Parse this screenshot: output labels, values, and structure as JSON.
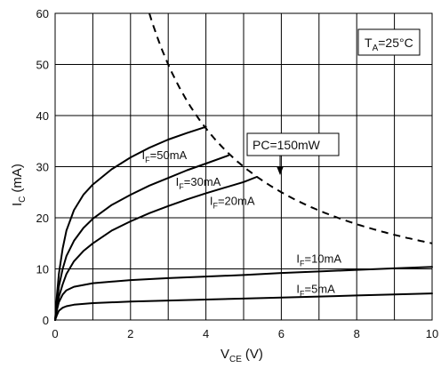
{
  "chart_data": {
    "type": "line",
    "xlabel": "V",
    "xlabel_sub": "CE",
    "xlabel_unit": "(V)",
    "ylabel": "I",
    "ylabel_sub": "C",
    "ylabel_unit": "(mA)",
    "xlim": [
      0,
      10
    ],
    "ylim": [
      0,
      60
    ],
    "xticks": [
      0,
      2,
      4,
      6,
      8,
      10
    ],
    "yticks": [
      0,
      10,
      20,
      30,
      40,
      50,
      60
    ],
    "xtick_labels": [
      "0",
      "2",
      "4",
      "6",
      "8",
      "10"
    ],
    "ytick_labels": [
      "0",
      "10",
      "20",
      "30",
      "40",
      "50",
      "60"
    ],
    "grid": true,
    "series": [
      {
        "name": "IF=50mA",
        "label_main": "I",
        "label_sub": "F",
        "label_rest": "=50mA",
        "x": [
          0,
          0.05,
          0.1,
          0.2,
          0.3,
          0.5,
          0.75,
          1.0,
          1.5,
          2.0,
          2.5,
          3.0,
          3.5,
          4.0
        ],
        "y": [
          0,
          5,
          9,
          14,
          17.5,
          21.5,
          24.5,
          26.5,
          29.5,
          31.8,
          33.7,
          35.3,
          36.6,
          37.8
        ]
      },
      {
        "name": "IF=30mA",
        "label_main": "I",
        "label_sub": "F",
        "label_rest": "=30mA",
        "x": [
          0,
          0.05,
          0.1,
          0.2,
          0.3,
          0.5,
          0.75,
          1.0,
          1.5,
          2.0,
          2.5,
          3.0,
          3.5,
          4.0,
          4.6
        ],
        "y": [
          0,
          3.5,
          6.5,
          10,
          12.5,
          15.5,
          18,
          19.8,
          22.5,
          24.5,
          26.3,
          27.8,
          29.3,
          30.6,
          32.2
        ]
      },
      {
        "name": "IF=20mA",
        "label_main": "I",
        "label_sub": "F",
        "label_rest": "=20mA",
        "x": [
          0,
          0.05,
          0.1,
          0.2,
          0.3,
          0.5,
          0.75,
          1.0,
          1.5,
          2.0,
          2.5,
          3.0,
          3.5,
          4.0,
          4.5,
          5.0,
          5.35
        ],
        "y": [
          0,
          2.5,
          4.5,
          7,
          9,
          11.5,
          13.5,
          15,
          17.5,
          19.3,
          20.9,
          22.3,
          23.6,
          24.8,
          25.9,
          27.0,
          28.0
        ]
      },
      {
        "name": "IF=10mA",
        "label_main": "I",
        "label_sub": "F",
        "label_rest": "=10mA",
        "x": [
          0,
          0.05,
          0.1,
          0.2,
          0.3,
          0.5,
          1.0,
          2.0,
          3.0,
          4.0,
          5.0,
          6.0,
          7.0,
          8.0,
          9.0,
          10.0
        ],
        "y": [
          0,
          2,
          3.5,
          5,
          5.8,
          6.5,
          7.2,
          7.8,
          8.2,
          8.5,
          8.8,
          9.2,
          9.5,
          9.8,
          10.1,
          10.4
        ]
      },
      {
        "name": "IF=5mA",
        "label_main": "I",
        "label_sub": "F",
        "label_rest": "=5mA",
        "x": [
          0,
          0.05,
          0.1,
          0.2,
          0.3,
          0.5,
          1.0,
          2.0,
          3.0,
          4.0,
          5.0,
          6.0,
          7.0,
          8.0,
          9.0,
          10.0
        ],
        "y": [
          0,
          1,
          1.8,
          2.4,
          2.7,
          3.0,
          3.3,
          3.6,
          3.8,
          4.0,
          4.2,
          4.4,
          4.6,
          4.8,
          5.0,
          5.2
        ]
      }
    ],
    "limit_curve": {
      "style": "dashed",
      "label": "PC=150mW",
      "power_mw": 150,
      "x_from": 2.5,
      "x_to": 10
    },
    "condition_box": {
      "main": "T",
      "sub": "A",
      "rest": "=25°C"
    }
  }
}
